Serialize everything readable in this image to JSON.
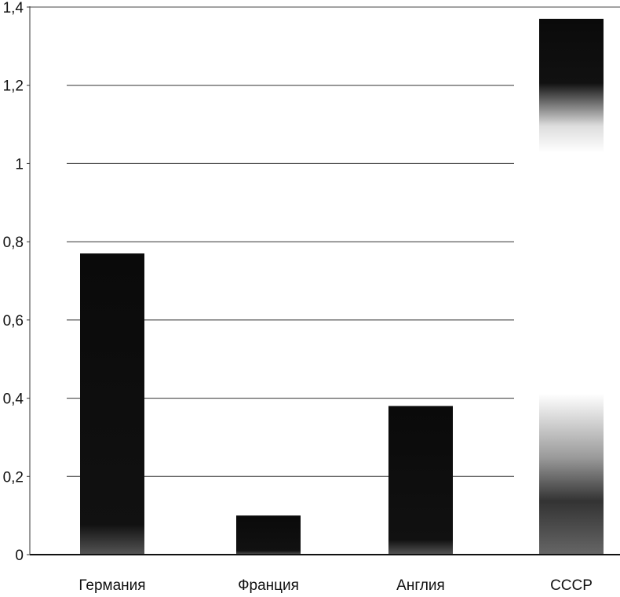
{
  "chart_data": {
    "type": "bar",
    "title": "",
    "xlabel": "",
    "ylabel": "",
    "categories": [
      "Германия",
      "Франция",
      "Англия",
      "СССР"
    ],
    "values": [
      0.77,
      0.1,
      0.38,
      1.37
    ],
    "ylim": [
      0,
      1.4
    ],
    "yticks": [
      0,
      0.2,
      0.4,
      0.6,
      0.8,
      1,
      1.2,
      1.4
    ],
    "ytick_labels": [
      "0",
      "0,2",
      "0,4",
      "0,6",
      "0,8",
      "1",
      "1,2",
      "1,4"
    ],
    "grid": true,
    "legend": "none",
    "bar_color": "#0a0a0a"
  }
}
